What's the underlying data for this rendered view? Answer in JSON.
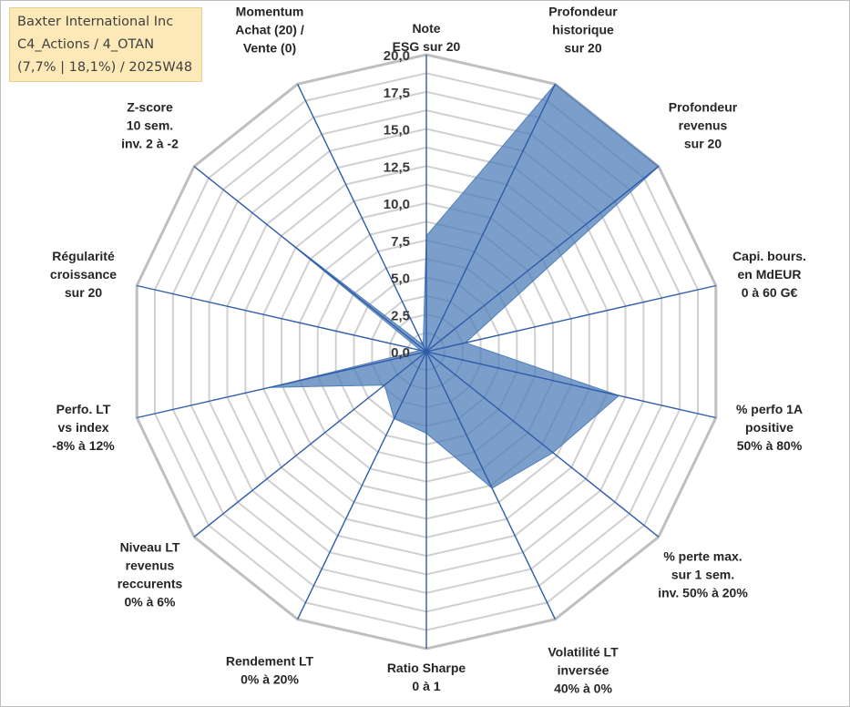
{
  "info": {
    "lines": [
      "Baxter International Inc",
      "C4_Actions / 4_OTAN",
      "(7,7% | 18,1%) / 2025W48"
    ]
  },
  "chart_data": {
    "type": "radar",
    "title": "",
    "rmax": 20,
    "ticks": [
      "0,0",
      "2,5",
      "5,0",
      "7,5",
      "10,0",
      "12,5",
      "15,0",
      "17,5",
      "20,0"
    ],
    "tick_values": [
      0,
      2.5,
      5,
      7.5,
      10,
      12.5,
      15,
      17.5,
      20
    ],
    "grid_step": 1.25,
    "series_color": "#4f7fb8",
    "axes": [
      {
        "label": [
          "Note",
          "ESG sur 20"
        ],
        "value": 7.8
      },
      {
        "label": [
          "Profondeur",
          "historique",
          "sur 20"
        ],
        "value": 20
      },
      {
        "label": [
          "Profondeur",
          "revenus",
          "sur 20"
        ],
        "value": 20
      },
      {
        "label": [
          "Capi. bours.",
          "en MdEUR",
          "0 à 60 G€"
        ],
        "value": 2.7
      },
      {
        "label": [
          "% perfo 1A",
          "positive",
          "50% à 80%"
        ],
        "value": 13.3
      },
      {
        "label": [
          "% perte max.",
          "sur 1 sem.",
          "inv. 50% à 20%"
        ],
        "value": 10.9
      },
      {
        "label": [
          "Volatilité LT",
          "inversée",
          "40% à 0%"
        ],
        "value": 10.2
      },
      {
        "label": [
          "Ratio Sharpe",
          "0 à 1"
        ],
        "value": 5.5
      },
      {
        "label": [
          "Rendement LT",
          "0% à 20%"
        ],
        "value": 5.0
      },
      {
        "label": [
          "Niveau LT",
          "revenus",
          "reccurents",
          "0% à 6%"
        ],
        "value": 3.6
      },
      {
        "label": [
          "Perfo. LT",
          "vs index",
          "-8% à 12%"
        ],
        "value": 10.8
      },
      {
        "label": [
          "Régularité",
          "croissance",
          "sur 20"
        ],
        "value": 0.4
      },
      {
        "label": [
          "Z-score",
          "10 sem.",
          "inv. 2 à -2"
        ],
        "value": 12.4
      },
      {
        "label": [
          "Momentum",
          "Achat (20) /",
          "Vente (0)"
        ],
        "value": 0.5
      }
    ]
  }
}
